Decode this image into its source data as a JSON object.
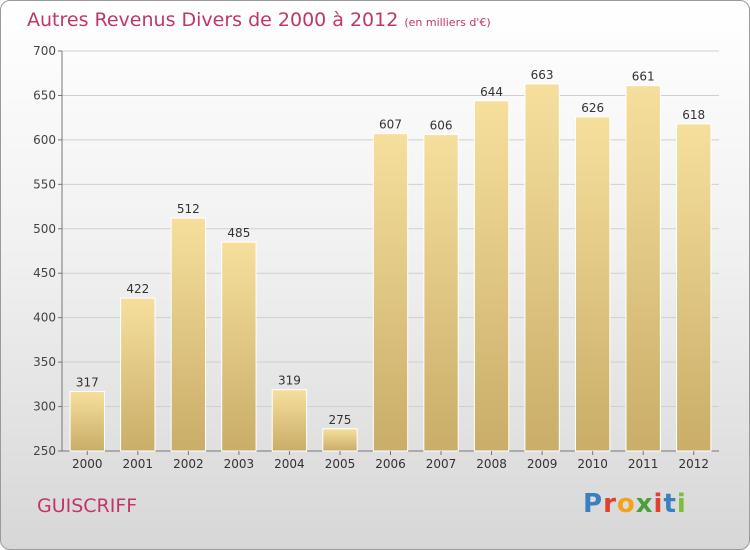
{
  "title": "Autres Revenus Divers de 2000 à 2012",
  "subtitle": "(en milliers d'€)",
  "location": "GUISCRIFF",
  "logo": "Proxiti",
  "colors": {
    "title": "#c0366a",
    "bar_light": "#f6df9d",
    "bar_dark": "#c9ad68",
    "grid": "#cfcfcf",
    "axis": "#777777"
  },
  "chart_data": {
    "type": "bar",
    "title": "Autres Revenus Divers de 2000 à 2012",
    "xlabel": "",
    "ylabel": "",
    "categories": [
      "2000",
      "2001",
      "2002",
      "2003",
      "2004",
      "2005",
      "2006",
      "2007",
      "2008",
      "2009",
      "2010",
      "2011",
      "2012"
    ],
    "values": [
      317,
      422,
      512,
      485,
      319,
      275,
      607,
      606,
      644,
      663,
      626,
      661,
      618
    ],
    "ylim": [
      250,
      700
    ],
    "yticks": [
      250,
      300,
      350,
      400,
      450,
      500,
      550,
      600,
      650,
      700
    ],
    "grid": true,
    "data_labels": true
  }
}
